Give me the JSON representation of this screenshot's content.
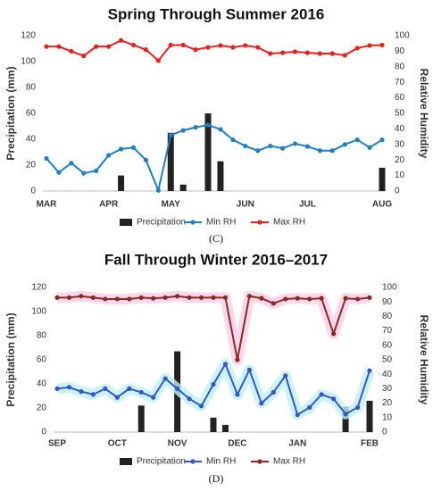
{
  "chart_data": [
    {
      "type": "combo",
      "title": "Spring Through Summer 2016",
      "caption": "(C)",
      "ylabel": "Precipitation (mm)",
      "y2label": "Relative Humidity",
      "categories": [
        "MAR",
        null,
        null,
        null,
        null,
        "APR",
        null,
        null,
        null,
        null,
        "MAY",
        null,
        null,
        null,
        null,
        null,
        "JUN",
        null,
        null,
        null,
        null,
        "JUL",
        null,
        null,
        null,
        null,
        null,
        "AUG"
      ],
      "ylim": [
        0,
        120
      ],
      "yticks": [
        0,
        20,
        40,
        60,
        80,
        100,
        120
      ],
      "y2lim": [
        0,
        100
      ],
      "y2ticks": [
        0,
        10,
        20,
        30,
        40,
        50,
        60,
        70,
        80,
        90,
        100
      ],
      "grid": false,
      "series": [
        {
          "name": "Precipitation",
          "type": "bar",
          "color": "#222222",
          "values": [
            0,
            0,
            0,
            0,
            0,
            0,
            12,
            0,
            0,
            0,
            45,
            5,
            0,
            60,
            23,
            0,
            0,
            0,
            0,
            0,
            0,
            0,
            0,
            0,
            0,
            0,
            0,
            18
          ]
        },
        {
          "name": "Min RH",
          "type": "line",
          "axis": "y2",
          "color": "#1f7fc4",
          "values": [
            21,
            12,
            18,
            11.5,
            13,
            23,
            27,
            28,
            20,
            0.5,
            36,
            39,
            41,
            42.5,
            39.7,
            33,
            29,
            26,
            29,
            27.5,
            30.5,
            28.7,
            26,
            26,
            30,
            33,
            28,
            33
          ]
        },
        {
          "name": "Max RH",
          "type": "line",
          "axis": "y2",
          "color": "#e8201c",
          "values": [
            93,
            93,
            90,
            87,
            93,
            93,
            97,
            94,
            91,
            84,
            94,
            94,
            91,
            92.5,
            93.7,
            92.5,
            93.7,
            92.5,
            88.5,
            89,
            89.7,
            89,
            88.5,
            88.5,
            87.4,
            92,
            93.7,
            94
          ]
        }
      ]
    },
    {
      "type": "combo",
      "title": "Fall Through Winter 2016–2017",
      "caption": "(D)",
      "ylabel": "Precipitation (mm)",
      "y2label": "Relative Humidity",
      "categories": [
        "SEP",
        null,
        null,
        null,
        null,
        "OCT",
        null,
        null,
        null,
        null,
        "NOV",
        null,
        null,
        null,
        null,
        "DEC",
        null,
        null,
        null,
        null,
        "JAN",
        null,
        null,
        null,
        null,
        null,
        "FEB"
      ],
      "ylim": [
        0,
        120
      ],
      "yticks": [
        0,
        20,
        40,
        60,
        80,
        100,
        120
      ],
      "y2lim": [
        0,
        100
      ],
      "y2ticks": [
        0,
        10,
        20,
        30,
        40,
        50,
        60,
        70,
        80,
        90,
        100
      ],
      "grid": false,
      "series": [
        {
          "name": "Precipitation",
          "type": "bar",
          "color": "#222222",
          "values": [
            0,
            0,
            0,
            0,
            0,
            0,
            0,
            22,
            0,
            0,
            67,
            0,
            0,
            12,
            6,
            0,
            0,
            0,
            0,
            0,
            0,
            0,
            0,
            0,
            21,
            0,
            26
          ]
        },
        {
          "name": "Min RH",
          "type": "line",
          "axis": "y2",
          "color": "#3a55c8",
          "halo": "#bdf1f5",
          "values": [
            30,
            31,
            28,
            26,
            30,
            24,
            30,
            27.5,
            24,
            37,
            30,
            23,
            18,
            33,
            47,
            26,
            43,
            20,
            27.5,
            39,
            12,
            17,
            26,
            23,
            12.5,
            17,
            42.5
          ]
        },
        {
          "name": "Max RH",
          "type": "line",
          "axis": "y2",
          "color": "#8b2a1e",
          "halo": "#f9cdea",
          "values": [
            93,
            93,
            94,
            93,
            92,
            92,
            92,
            93,
            92.5,
            93,
            94,
            93,
            93,
            93,
            93,
            50,
            94,
            92.5,
            89,
            92,
            92.5,
            92,
            92.5,
            68,
            92.5,
            92,
            93
          ]
        }
      ]
    }
  ]
}
